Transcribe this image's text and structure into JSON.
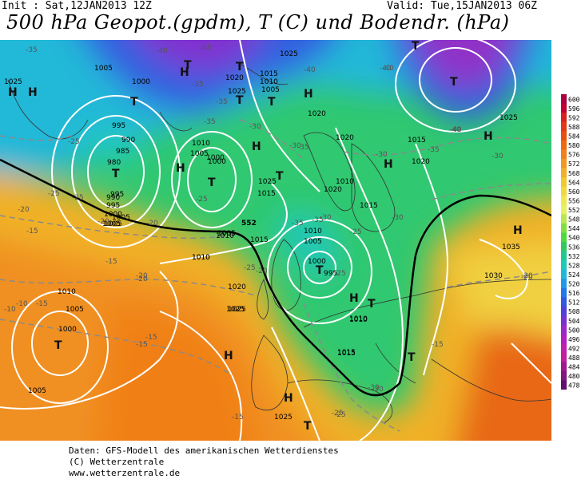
{
  "header": {
    "init": "Init : Sat,12JAN2013 12Z",
    "valid": "Valid: Tue,15JAN2013 06Z",
    "title": "500 hPa Geopot.(gpdm), T (C) und Bodendr. (hPa)"
  },
  "pressure_labels": [
    "1025",
    "1005",
    "1000",
    "995",
    "990",
    "985",
    "980",
    "995",
    "990",
    "995",
    "1000",
    "1005",
    "1000",
    "1010",
    "1005",
    "1010",
    "1020",
    "1025",
    "1015",
    "1010",
    "1005",
    "1025",
    "1020",
    "1025",
    "1015",
    "1020",
    "1020",
    "1015",
    "1020",
    "1010",
    "1005",
    "1000",
    "995",
    "1015",
    "1010",
    "1005",
    "1010",
    "1015",
    "1010",
    "1005",
    "1000",
    "1005",
    "1010",
    "1025",
    "1020",
    "1015",
    "1025",
    "1025",
    "1030",
    "1035",
    "1005",
    "1000",
    "1005",
    "1010",
    "1010",
    "1025",
    "1015",
    "1005"
  ],
  "temp_labels": [
    "-35",
    "-45",
    "-40",
    "-40",
    "-35",
    "-35",
    "-40",
    "-25",
    "-35",
    "-30",
    "-30",
    "-35",
    "-40",
    "-25",
    "-25",
    "-35",
    "-20",
    "-25",
    "-20",
    "-20",
    "-25",
    "-15",
    "-15",
    "-20",
    "-20",
    "-15",
    "-10",
    "-10",
    "-15",
    "-15",
    "-20",
    "-15",
    "-30",
    "-25",
    "-30",
    "-30",
    "-35",
    "-30",
    "-25",
    "-30",
    "-25",
    "-35",
    "-15",
    "-20",
    "-25",
    "-30",
    "-40",
    "-40",
    "-20"
  ],
  "highs": [
    "H",
    "H",
    "H",
    "H",
    "H",
    "H",
    "H",
    "H",
    "H",
    "H",
    "H",
    "H"
  ],
  "lows": [
    "T",
    "T",
    "T",
    "T",
    "T",
    "T",
    "T",
    "T",
    "T",
    "T",
    "T",
    "T",
    "T",
    "T",
    "T"
  ],
  "heavy_contour_label": "552",
  "colorbar": {
    "ticks": [
      "600",
      "596",
      "592",
      "588",
      "584",
      "580",
      "576",
      "572",
      "568",
      "564",
      "560",
      "556",
      "552",
      "548",
      "544",
      "540",
      "536",
      "532",
      "528",
      "524",
      "520",
      "516",
      "512",
      "508",
      "504",
      "500",
      "496",
      "492",
      "488",
      "484",
      "480",
      "478"
    ],
    "colors": [
      "#a80040",
      "#c00030",
      "#d82020",
      "#e03818",
      "#e85010",
      "#f06810",
      "#f08018",
      "#f09820",
      "#f0b028",
      "#f0c830",
      "#f0d840",
      "#f0e850",
      "#e8f060",
      "#b8e850",
      "#80e040",
      "#50d840",
      "#30c860",
      "#20c890",
      "#20c8b8",
      "#20b8d8",
      "#2098e8",
      "#2078e8",
      "#3058e0",
      "#5040d8",
      "#7830d0",
      "#9828c8",
      "#b020c0",
      "#c020b0",
      "#c020a0",
      "#a01890",
      "#801880",
      "#601070"
    ]
  },
  "footer": {
    "line1": "Daten: GFS-Modell des amerikanischen Wetterdienstes",
    "line2": "(C) Wetterzentrale",
    "line3": "www.wetterzentrale.de"
  }
}
